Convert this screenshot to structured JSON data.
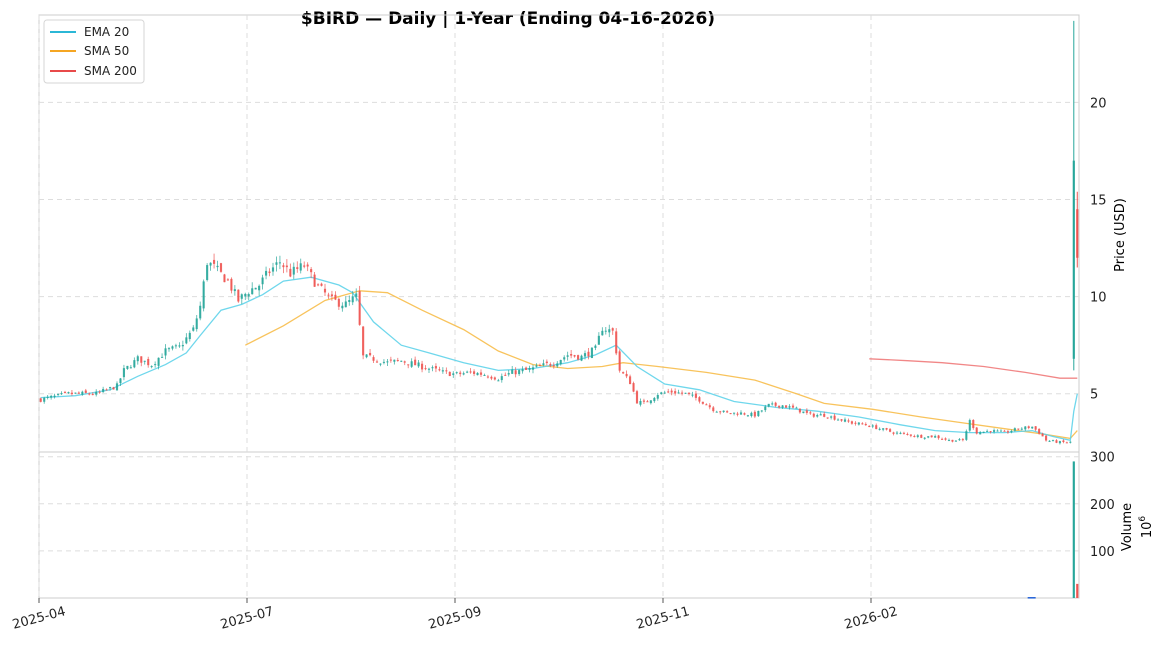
{
  "chart_data": {
    "type": "candlestick",
    "title": "$BIRD  —  Daily  |  1-Year (Ending 04-16-2026)",
    "price_axis": {
      "label": "Price (USD)",
      "ticks": [
        5,
        10,
        15,
        20
      ],
      "range": [
        2.0,
        24.5
      ],
      "side": "right",
      "grid": true
    },
    "volume_axis": {
      "label": "Volume",
      "multiplier": "10^6",
      "multiplier_base": "10",
      "multiplier_exp": "6",
      "ticks": [
        100,
        200,
        300
      ],
      "range": [
        0,
        310
      ],
      "side": "right",
      "grid": true
    },
    "x_axis": {
      "ticks": [
        "2025-04",
        "2025-07",
        "2025-09",
        "2025-11",
        "2026-02"
      ],
      "tick_positions": [
        0,
        60,
        120,
        180,
        240
      ],
      "n_days": 300,
      "rotation_deg": -15
    },
    "legend": {
      "location": "top-left",
      "entries": [
        {
          "label": "EMA 20",
          "color": "#2bb7d6"
        },
        {
          "label": "SMA 50",
          "color": "#f5a623"
        },
        {
          "label": "SMA 200",
          "color": "#e84a4a"
        }
      ]
    },
    "colors": {
      "up": "#26a69a",
      "down": "#ef5350",
      "ema20": "#5fd3ea",
      "sma50": "#f7bd4a",
      "sma200": "#f07a7a",
      "volume_blue": "#1f5fd6"
    },
    "close_anchors": [
      {
        "i": 0,
        "v": 4.7
      },
      {
        "i": 8,
        "v": 5.0
      },
      {
        "i": 16,
        "v": 5.0
      },
      {
        "i": 22,
        "v": 5.4
      },
      {
        "i": 24,
        "v": 6.2
      },
      {
        "i": 28,
        "v": 6.8
      },
      {
        "i": 32,
        "v": 6.5
      },
      {
        "i": 36,
        "v": 7.2
      },
      {
        "i": 40,
        "v": 7.4
      },
      {
        "i": 44,
        "v": 8.3
      },
      {
        "i": 46,
        "v": 9.5
      },
      {
        "i": 48,
        "v": 11.8
      },
      {
        "i": 50,
        "v": 11.5
      },
      {
        "i": 54,
        "v": 10.8
      },
      {
        "i": 57,
        "v": 9.8
      },
      {
        "i": 60,
        "v": 10.3
      },
      {
        "i": 63,
        "v": 10.6
      },
      {
        "i": 66,
        "v": 11.3
      },
      {
        "i": 69,
        "v": 11.8
      },
      {
        "i": 72,
        "v": 11.2
      },
      {
        "i": 76,
        "v": 11.6
      },
      {
        "i": 80,
        "v": 10.5
      },
      {
        "i": 84,
        "v": 9.8
      },
      {
        "i": 88,
        "v": 9.6
      },
      {
        "i": 91,
        "v": 10.0
      },
      {
        "i": 93,
        "v": 6.9
      },
      {
        "i": 96,
        "v": 6.8
      },
      {
        "i": 100,
        "v": 6.6
      },
      {
        "i": 104,
        "v": 6.7
      },
      {
        "i": 108,
        "v": 6.5
      },
      {
        "i": 112,
        "v": 6.3
      },
      {
        "i": 116,
        "v": 6.1
      },
      {
        "i": 120,
        "v": 6.0
      },
      {
        "i": 124,
        "v": 6.1
      },
      {
        "i": 128,
        "v": 6.0
      },
      {
        "i": 132,
        "v": 5.8
      },
      {
        "i": 136,
        "v": 6.1
      },
      {
        "i": 140,
        "v": 6.2
      },
      {
        "i": 144,
        "v": 6.4
      },
      {
        "i": 148,
        "v": 6.6
      },
      {
        "i": 152,
        "v": 7.0
      },
      {
        "i": 156,
        "v": 6.9
      },
      {
        "i": 160,
        "v": 7.3
      },
      {
        "i": 162,
        "v": 8.4
      },
      {
        "i": 165,
        "v": 8.2
      },
      {
        "i": 167,
        "v": 6.2
      },
      {
        "i": 170,
        "v": 5.6
      },
      {
        "i": 172,
        "v": 4.6
      },
      {
        "i": 174,
        "v": 4.5
      },
      {
        "i": 178,
        "v": 5.0
      },
      {
        "i": 182,
        "v": 5.1
      },
      {
        "i": 186,
        "v": 5.0
      },
      {
        "i": 190,
        "v": 4.7
      },
      {
        "i": 194,
        "v": 4.2
      },
      {
        "i": 198,
        "v": 4.0
      },
      {
        "i": 202,
        "v": 4.0
      },
      {
        "i": 206,
        "v": 3.9
      },
      {
        "i": 210,
        "v": 4.4
      },
      {
        "i": 214,
        "v": 4.4
      },
      {
        "i": 218,
        "v": 4.2
      },
      {
        "i": 222,
        "v": 3.9
      },
      {
        "i": 226,
        "v": 3.9
      },
      {
        "i": 230,
        "v": 3.7
      },
      {
        "i": 234,
        "v": 3.5
      },
      {
        "i": 238,
        "v": 3.4
      },
      {
        "i": 242,
        "v": 3.2
      },
      {
        "i": 246,
        "v": 3.0
      },
      {
        "i": 250,
        "v": 2.9
      },
      {
        "i": 254,
        "v": 2.8
      },
      {
        "i": 258,
        "v": 2.8
      },
      {
        "i": 262,
        "v": 2.6
      },
      {
        "i": 266,
        "v": 2.6
      },
      {
        "i": 268,
        "v": 3.6
      },
      {
        "i": 270,
        "v": 3.0
      },
      {
        "i": 274,
        "v": 3.1
      },
      {
        "i": 278,
        "v": 3.0
      },
      {
        "i": 282,
        "v": 3.2
      },
      {
        "i": 286,
        "v": 3.3
      },
      {
        "i": 288,
        "v": 3.0
      },
      {
        "i": 290,
        "v": 2.6
      },
      {
        "i": 294,
        "v": 2.5
      },
      {
        "i": 297,
        "v": 2.5
      }
    ],
    "final_candles": [
      {
        "i": 298,
        "open": 6.8,
        "high": 24.2,
        "low": 6.2,
        "close": 17.0
      },
      {
        "i": 299,
        "open": 14.5,
        "high": 15.4,
        "low": 11.5,
        "close": 12.0
      }
    ],
    "ema20": [
      {
        "i": 0,
        "v": 4.8
      },
      {
        "i": 10,
        "v": 4.9
      },
      {
        "i": 20,
        "v": 5.2
      },
      {
        "i": 28,
        "v": 5.9
      },
      {
        "i": 36,
        "v": 6.5
      },
      {
        "i": 42,
        "v": 7.1
      },
      {
        "i": 46,
        "v": 8.0
      },
      {
        "i": 52,
        "v": 9.3
      },
      {
        "i": 58,
        "v": 9.6
      },
      {
        "i": 64,
        "v": 10.1
      },
      {
        "i": 70,
        "v": 10.8
      },
      {
        "i": 78,
        "v": 11.0
      },
      {
        "i": 86,
        "v": 10.6
      },
      {
        "i": 90,
        "v": 10.2
      },
      {
        "i": 96,
        "v": 8.7
      },
      {
        "i": 104,
        "v": 7.5
      },
      {
        "i": 112,
        "v": 7.1
      },
      {
        "i": 122,
        "v": 6.6
      },
      {
        "i": 132,
        "v": 6.2
      },
      {
        "i": 142,
        "v": 6.3
      },
      {
        "i": 152,
        "v": 6.6
      },
      {
        "i": 160,
        "v": 7.0
      },
      {
        "i": 166,
        "v": 7.5
      },
      {
        "i": 172,
        "v": 6.4
      },
      {
        "i": 180,
        "v": 5.5
      },
      {
        "i": 190,
        "v": 5.2
      },
      {
        "i": 200,
        "v": 4.6
      },
      {
        "i": 212,
        "v": 4.3
      },
      {
        "i": 224,
        "v": 4.1
      },
      {
        "i": 236,
        "v": 3.8
      },
      {
        "i": 248,
        "v": 3.4
      },
      {
        "i": 258,
        "v": 3.1
      },
      {
        "i": 268,
        "v": 3.0
      },
      {
        "i": 278,
        "v": 3.0
      },
      {
        "i": 286,
        "v": 3.1
      },
      {
        "i": 292,
        "v": 2.8
      },
      {
        "i": 297,
        "v": 2.6
      },
      {
        "i": 298,
        "v": 4.1
      },
      {
        "i": 299,
        "v": 5.0
      }
    ],
    "sma50": [
      {
        "i": 59,
        "v": 7.5
      },
      {
        "i": 70,
        "v": 8.5
      },
      {
        "i": 82,
        "v": 9.8
      },
      {
        "i": 92,
        "v": 10.3
      },
      {
        "i": 100,
        "v": 10.2
      },
      {
        "i": 110,
        "v": 9.3
      },
      {
        "i": 122,
        "v": 8.3
      },
      {
        "i": 132,
        "v": 7.2
      },
      {
        "i": 142,
        "v": 6.5
      },
      {
        "i": 152,
        "v": 6.3
      },
      {
        "i": 162,
        "v": 6.4
      },
      {
        "i": 168,
        "v": 6.6
      },
      {
        "i": 178,
        "v": 6.4
      },
      {
        "i": 192,
        "v": 6.1
      },
      {
        "i": 206,
        "v": 5.7
      },
      {
        "i": 218,
        "v": 5.0
      },
      {
        "i": 226,
        "v": 4.5
      },
      {
        "i": 240,
        "v": 4.2
      },
      {
        "i": 254,
        "v": 3.8
      },
      {
        "i": 266,
        "v": 3.5
      },
      {
        "i": 278,
        "v": 3.2
      },
      {
        "i": 290,
        "v": 2.9
      },
      {
        "i": 297,
        "v": 2.7
      },
      {
        "i": 299,
        "v": 3.1
      }
    ],
    "sma200": [
      {
        "i": 239,
        "v": 6.8
      },
      {
        "i": 250,
        "v": 6.7
      },
      {
        "i": 260,
        "v": 6.6
      },
      {
        "i": 272,
        "v": 6.4
      },
      {
        "i": 284,
        "v": 6.1
      },
      {
        "i": 294,
        "v": 5.8
      },
      {
        "i": 299,
        "v": 5.8
      }
    ],
    "volume_highlights": [
      {
        "i": 285,
        "v": 2,
        "color": "blue"
      },
      {
        "i": 298,
        "v": 290,
        "color": "up"
      },
      {
        "i": 299,
        "v": 30,
        "color": "down"
      }
    ]
  }
}
